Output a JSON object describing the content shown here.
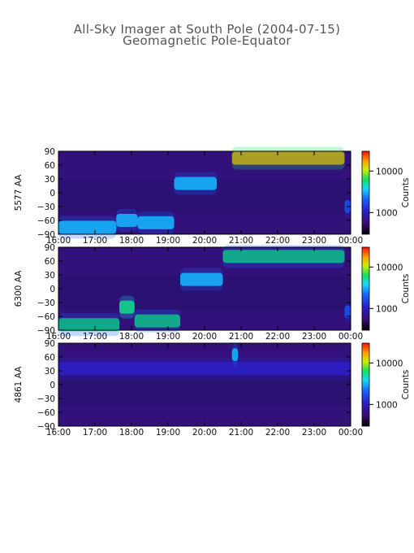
{
  "title": "All-Sky Imager at South Pole (2004-07-15)",
  "subtitle": "Geomagnetic Pole-Equator",
  "chart_data": [
    {
      "type": "heatmap",
      "panel": "5577 AA",
      "ylabel": "5577 AA",
      "x_tick_labels": [
        "16:00",
        "17:00",
        "18:00",
        "19:00",
        "20:00",
        "21:00",
        "22:00",
        "23:00",
        "00:00"
      ],
      "xlim": [
        "16:00",
        "00:00"
      ],
      "y_ticks": [
        90,
        60,
        30,
        0,
        -30,
        -60,
        -90
      ],
      "ylim": [
        -90,
        90
      ],
      "colorbar": {
        "label": "Counts",
        "ticks": [
          10000,
          1000
        ],
        "tick_labels": [
          "10000",
          "1000"
        ],
        "scale": "log"
      },
      "features": [
        {
          "start": "16:00",
          "end": "17:35",
          "lat": -75,
          "intensity": 0.45
        },
        {
          "start": "17:35",
          "end": "18:10",
          "lat": -60,
          "intensity": 0.5
        },
        {
          "start": "18:10",
          "end": "19:10",
          "lat": -65,
          "intensity": 0.45
        },
        {
          "start": "19:10",
          "end": "20:20",
          "lat": 20,
          "intensity": 0.5
        },
        {
          "start": "20:45",
          "end": "23:50",
          "lat": 75,
          "intensity": 0.9
        },
        {
          "start": "23:50",
          "end": "00:00",
          "lat": -30,
          "intensity": 0.4
        }
      ]
    },
    {
      "type": "heatmap",
      "panel": "6300 AA",
      "ylabel": "6300 AA",
      "x_tick_labels": [
        "16:00",
        "17:00",
        "18:00",
        "19:00",
        "20:00",
        "21:00",
        "22:00",
        "23:00",
        "00:00"
      ],
      "xlim": [
        "16:00",
        "00:00"
      ],
      "y_ticks": [
        90,
        60,
        30,
        0,
        -30,
        -60,
        -90
      ],
      "ylim": [
        -90,
        90
      ],
      "colorbar": {
        "label": "Counts",
        "ticks": [
          10000,
          1000
        ],
        "tick_labels": [
          "10000",
          "1000"
        ],
        "scale": "log"
      },
      "features": [
        {
          "start": "16:00",
          "end": "17:40",
          "lat": -78,
          "intensity": 0.6
        },
        {
          "start": "17:40",
          "end": "18:05",
          "lat": -40,
          "intensity": 0.65
        },
        {
          "start": "18:05",
          "end": "19:20",
          "lat": -70,
          "intensity": 0.6
        },
        {
          "start": "19:20",
          "end": "20:30",
          "lat": 20,
          "intensity": 0.55
        },
        {
          "start": "20:30",
          "end": "23:50",
          "lat": 70,
          "intensity": 0.6
        },
        {
          "start": "23:50",
          "end": "00:00",
          "lat": -50,
          "intensity": 0.4
        }
      ]
    },
    {
      "type": "heatmap",
      "panel": "4861 AA",
      "ylabel": "4861 AA",
      "x_tick_labels": [
        "16:00",
        "17:00",
        "18:00",
        "19:00",
        "20:00",
        "21:00",
        "22:00",
        "23:00",
        "00:00"
      ],
      "xlim": [
        "16:00",
        "00:00"
      ],
      "y_ticks": [
        90,
        60,
        30,
        0,
        -30,
        -60,
        -90
      ],
      "ylim": [
        -90,
        90
      ],
      "colorbar": {
        "label": "Counts",
        "ticks": [
          10000,
          1000
        ],
        "tick_labels": [
          "10000",
          "1000"
        ],
        "scale": "log"
      },
      "features": [
        {
          "start": "16:00",
          "end": "00:00",
          "lat": 35,
          "intensity": 0.3
        },
        {
          "start": "20:45",
          "end": "20:55",
          "lat": 65,
          "intensity": 0.55
        }
      ]
    }
  ]
}
